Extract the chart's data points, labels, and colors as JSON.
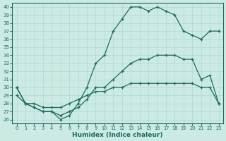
{
  "xlabel": "Humidex (Indice chaleur)",
  "xlim": [
    -0.5,
    23.5
  ],
  "ylim": [
    25.5,
    40.5
  ],
  "yticks": [
    26,
    27,
    28,
    29,
    30,
    31,
    32,
    33,
    34,
    35,
    36,
    37,
    38,
    39,
    40
  ],
  "xticks": [
    0,
    1,
    2,
    3,
    4,
    5,
    6,
    7,
    8,
    9,
    10,
    11,
    12,
    13,
    14,
    15,
    16,
    17,
    18,
    19,
    20,
    21,
    22,
    23
  ],
  "bg_color": "#cceae4",
  "line_color": "#1a6b5e",
  "grid_color": "#b0d8d0",
  "line_top_x": [
    0,
    1,
    2,
    3,
    4,
    5,
    6,
    7,
    8,
    9,
    10,
    11,
    12,
    13,
    14,
    15,
    16,
    17,
    18,
    19,
    20,
    21,
    22,
    23
  ],
  "line_top_y": [
    30,
    28,
    27.5,
    27,
    27,
    26,
    26.5,
    28,
    30,
    33,
    34,
    37,
    38.5,
    40,
    40,
    39.5,
    40,
    39.5,
    39,
    37,
    36.5,
    36,
    37,
    37
  ],
  "line_mid_x": [
    0,
    1,
    2,
    3,
    4,
    5,
    6,
    7,
    8,
    9,
    10,
    11,
    12,
    13,
    14,
    15,
    16,
    17,
    18,
    19,
    20,
    21,
    22,
    23
  ],
  "line_mid_y": [
    30,
    28,
    27.5,
    27,
    27,
    26.5,
    27,
    27.5,
    28.5,
    30,
    30,
    31,
    32,
    33,
    33.5,
    33.5,
    34,
    34,
    34,
    33.5,
    33.5,
    31,
    31.5,
    28
  ],
  "line_bot_x": [
    0,
    1,
    2,
    3,
    4,
    5,
    6,
    7,
    8,
    9,
    10,
    11,
    12,
    13,
    14,
    15,
    16,
    17,
    18,
    19,
    20,
    21,
    22,
    23
  ],
  "line_bot_y": [
    29,
    28,
    28,
    27.5,
    27.5,
    27.5,
    28,
    28.5,
    29,
    29.5,
    29.5,
    30,
    30,
    30.5,
    30.5,
    30.5,
    30.5,
    30.5,
    30.5,
    30.5,
    30.5,
    30,
    30,
    28
  ]
}
